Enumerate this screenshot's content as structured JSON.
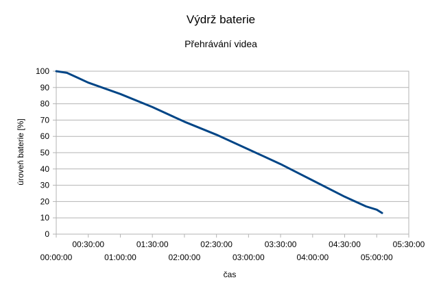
{
  "chart_data": {
    "type": "line",
    "title": "Výdrž baterie",
    "subtitle": "Přehrávání videa",
    "xlabel": "čas",
    "ylabel": "úroveň baterie [%]",
    "ylim": [
      0,
      100
    ],
    "yticks": [
      "0",
      "10",
      "20",
      "30",
      "40",
      "50",
      "60",
      "70",
      "80",
      "90",
      "100"
    ],
    "xlim_seconds": [
      0,
      19800
    ],
    "xticks": [
      {
        "label": "00:00:00",
        "seconds": 0
      },
      {
        "label": "00:30:00",
        "seconds": 1800
      },
      {
        "label": "01:00:00",
        "seconds": 3600
      },
      {
        "label": "01:30:00",
        "seconds": 5400
      },
      {
        "label": "02:00:00",
        "seconds": 7200
      },
      {
        "label": "02:30:00",
        "seconds": 9000
      },
      {
        "label": "03:00:00",
        "seconds": 10800
      },
      {
        "label": "03:30:00",
        "seconds": 12600
      },
      {
        "label": "04:00:00",
        "seconds": 14400
      },
      {
        "label": "04:30:00",
        "seconds": 16200
      },
      {
        "label": "05:00:00",
        "seconds": 18000
      },
      {
        "label": "05:30:00",
        "seconds": 19800
      }
    ],
    "grid": "horizontal",
    "legend": "none",
    "series": [
      {
        "color": "#004586",
        "points": [
          {
            "x": "00:00:00",
            "y": 100
          },
          {
            "x": "00:10:00",
            "y": 99
          },
          {
            "x": "00:20:00",
            "y": 96
          },
          {
            "x": "00:30:00",
            "y": 93
          },
          {
            "x": "01:00:00",
            "y": 86
          },
          {
            "x": "01:30:00",
            "y": 78
          },
          {
            "x": "02:00:00",
            "y": 69
          },
          {
            "x": "02:30:00",
            "y": 61
          },
          {
            "x": "03:00:00",
            "y": 52
          },
          {
            "x": "03:30:00",
            "y": 43
          },
          {
            "x": "04:00:00",
            "y": 33
          },
          {
            "x": "04:30:00",
            "y": 23
          },
          {
            "x": "04:50:00",
            "y": 17
          },
          {
            "x": "05:00:00",
            "y": 15
          },
          {
            "x": "05:05:00",
            "y": 13
          }
        ]
      }
    ]
  }
}
